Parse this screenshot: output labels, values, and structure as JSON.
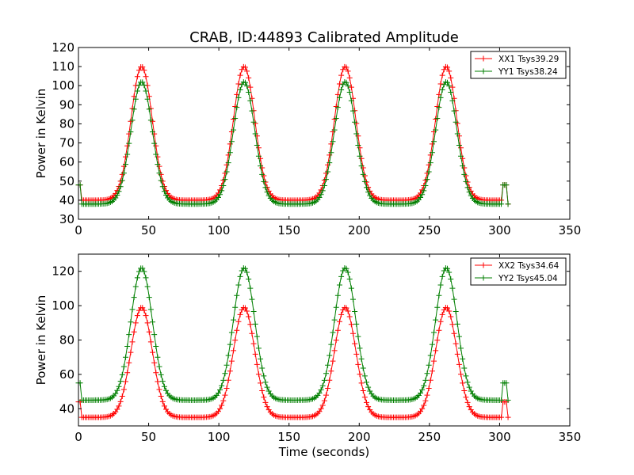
{
  "title": "CRAB, ID:44893 Calibrated Amplitude",
  "chart_data": [
    {
      "type": "line",
      "title": "CRAB, ID:44893 Calibrated Amplitude",
      "xlabel": "",
      "ylabel": "Power in Kelvin",
      "xlim": [
        0,
        350
      ],
      "ylim": [
        30,
        120
      ],
      "xticks": [
        0,
        50,
        100,
        150,
        200,
        250,
        300,
        350
      ],
      "yticks": [
        30,
        40,
        50,
        60,
        70,
        80,
        90,
        100,
        110,
        120
      ],
      "legend_position": "top-right",
      "grid": false,
      "marker": "+",
      "x_range": [
        0,
        307
      ],
      "peak_centers": [
        45,
        118,
        190,
        262
      ],
      "series": [
        {
          "name": "XX1 Tsys39.29",
          "color": "#ff0000",
          "baseline": 40,
          "peak": 110,
          "edge_value": 48,
          "end_value": 38
        },
        {
          "name": "YY1 Tsys38.24",
          "color": "#007f00",
          "baseline": 38,
          "peak": 102,
          "edge_value": 48,
          "end_value": 38
        }
      ]
    },
    {
      "type": "line",
      "title": "",
      "xlabel": "Time (seconds)",
      "ylabel": "Power in Kelvin",
      "xlim": [
        0,
        350
      ],
      "ylim": [
        30,
        130
      ],
      "xticks": [
        0,
        50,
        100,
        150,
        200,
        250,
        300,
        350
      ],
      "yticks": [
        40,
        60,
        80,
        100,
        120
      ],
      "legend_position": "top-right",
      "grid": false,
      "marker": "+",
      "x_range": [
        0,
        307
      ],
      "peak_centers": [
        45,
        118,
        190,
        262
      ],
      "series": [
        {
          "name": "XX2 Tsys34.64",
          "color": "#ff0000",
          "baseline": 35,
          "peak": 99,
          "edge_value": 44,
          "end_value": 35
        },
        {
          "name": "YY2 Tsys45.04",
          "color": "#007f00",
          "baseline": 45,
          "peak": 122,
          "edge_value": 55,
          "end_value": 45
        }
      ]
    }
  ]
}
